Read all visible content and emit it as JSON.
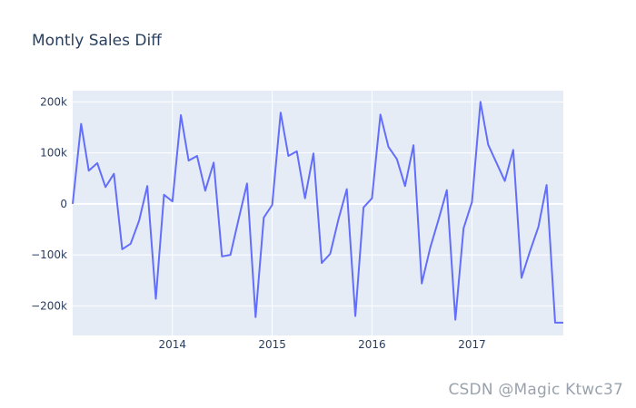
{
  "chart_data": {
    "type": "line",
    "title": "Montly Sales Diff",
    "xlabel": "",
    "ylabel": "",
    "x_axis_type": "date",
    "xlim": [
      "2013-01-01",
      "2017-12-01"
    ],
    "ylim": [
      -258000,
      222000
    ],
    "grid": true,
    "legend": "none",
    "x_tick_labels": [
      {
        "date": "2014-01-01",
        "label": "2014"
      },
      {
        "date": "2015-01-01",
        "label": "2015"
      },
      {
        "date": "2016-01-01",
        "label": "2016"
      },
      {
        "date": "2017-01-01",
        "label": "2017"
      }
    ],
    "y_tick_labels": [
      {
        "value": 200000,
        "label": "200k"
      },
      {
        "value": 100000,
        "label": "100k"
      },
      {
        "value": 0,
        "label": "0"
      },
      {
        "value": -100000,
        "label": "−100k"
      },
      {
        "value": -200000,
        "label": "−200k"
      }
    ],
    "series": [
      {
        "color": "#636efa",
        "x": [
          "2013-01-01",
          "2013-02-01",
          "2013-03-01",
          "2013-04-01",
          "2013-05-01",
          "2013-06-01",
          "2013-07-01",
          "2013-08-01",
          "2013-09-01",
          "2013-10-01",
          "2013-11-01",
          "2013-12-01",
          "2014-01-01",
          "2014-02-01",
          "2014-03-01",
          "2014-04-01",
          "2014-05-01",
          "2014-06-01",
          "2014-07-01",
          "2014-08-01",
          "2014-09-01",
          "2014-10-01",
          "2014-11-01",
          "2014-12-01",
          "2015-01-01",
          "2015-02-01",
          "2015-03-01",
          "2015-04-01",
          "2015-05-01",
          "2015-06-01",
          "2015-07-01",
          "2015-08-01",
          "2015-09-01",
          "2015-10-01",
          "2015-11-01",
          "2015-12-01",
          "2016-01-01",
          "2016-02-01",
          "2016-03-01",
          "2016-04-01",
          "2016-05-01",
          "2016-06-01",
          "2016-07-01",
          "2016-08-01",
          "2016-09-01",
          "2016-10-01",
          "2016-11-01",
          "2016-12-01",
          "2017-01-01",
          "2017-02-01",
          "2017-03-01",
          "2017-04-01",
          "2017-05-01",
          "2017-06-01",
          "2017-07-01",
          "2017-08-01",
          "2017-09-01",
          "2017-10-01",
          "2017-11-01",
          "2017-12-01"
        ],
        "values": [
          0,
          157000,
          65000,
          80000,
          33000,
          59000,
          -89000,
          -78000,
          -33000,
          35000,
          -186000,
          18000,
          5000,
          174000,
          85000,
          94000,
          26000,
          81000,
          -103000,
          -100000,
          -28000,
          40000,
          -222000,
          -27000,
          -2000,
          179000,
          94000,
          103000,
          11000,
          99000,
          -116000,
          -98000,
          -29000,
          29000,
          -220000,
          -7000,
          11000,
          175000,
          112000,
          88000,
          35000,
          115000,
          -156000,
          -86000,
          -30000,
          27000,
          -227000,
          -48000,
          4000,
          200000,
          116000,
          80000,
          45000,
          106000,
          -145000,
          -93000,
          -45000,
          37000,
          -233000,
          -233000
        ]
      }
    ]
  },
  "watermark": "CSDN @Magic Ktwc37"
}
